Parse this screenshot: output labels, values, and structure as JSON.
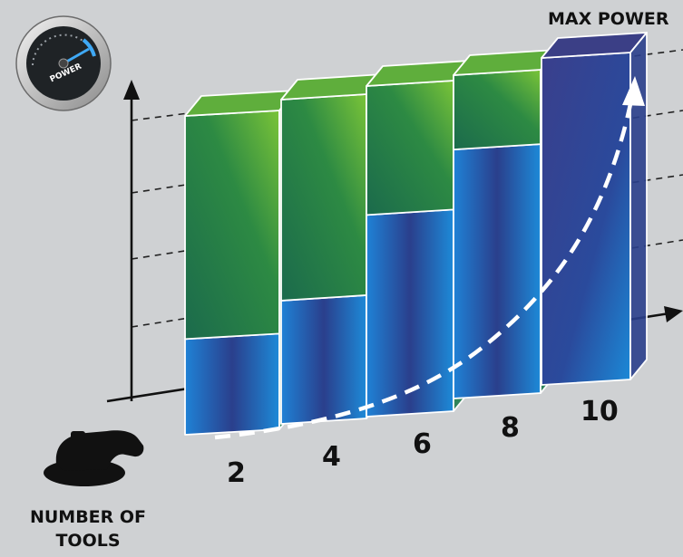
{
  "chart_data": {
    "type": "bar",
    "categories": [
      "2",
      "4",
      "6",
      "8",
      "10"
    ],
    "series": [
      {
        "values": [
          30,
          38,
          61,
          77,
          100
        ]
      },
      {
        "values": [
          70,
          62,
          39,
          23,
          0
        ]
      }
    ],
    "y_label": "MAX POWER",
    "x_label": "NUMBER OF TOOLS",
    "gauge_label": "POWER",
    "stacked": true,
    "colors": {
      "power": "#1a6fc4",
      "unused": "#4a9a3a",
      "curve": "#ffffff",
      "axis": "#111111"
    }
  }
}
